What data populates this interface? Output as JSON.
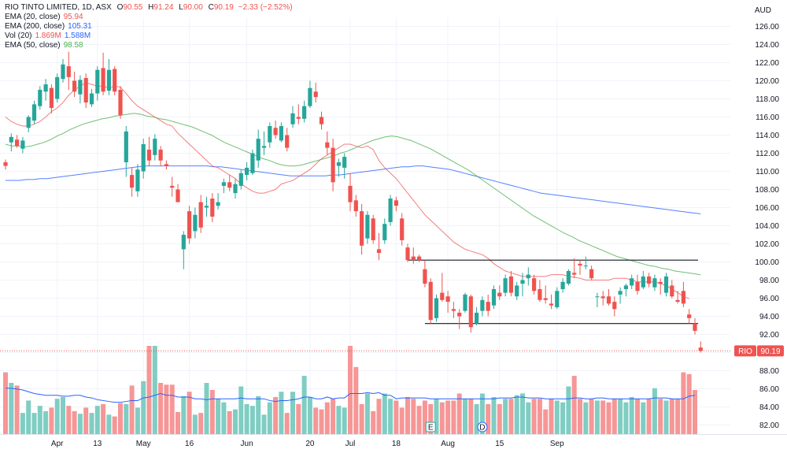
{
  "header": {
    "symbol": "RIO TINTO LIMITED, 1D, ASX",
    "ohlc": [
      {
        "k": "O",
        "v": "90.55"
      },
      {
        "k": "H",
        "v": "91.24"
      },
      {
        "k": "L",
        "v": "90.00"
      },
      {
        "k": "C",
        "v": "90.19"
      }
    ],
    "change": "−2.33 (−2.52%)",
    "currency": "AUD"
  },
  "indicators": [
    {
      "label": "EMA (20, close)",
      "value": "95.94",
      "color": "#ef5350"
    },
    {
      "label": "EMA (200, close)",
      "value": "105.31",
      "color": "#2962ff"
    },
    {
      "label": "Vol (20)",
      "value": "1.869M",
      "value2": "1.588M",
      "color": "#ef5350",
      "color2": "#2962ff"
    },
    {
      "label": "EMA (50, close)",
      "value": "98.58",
      "color": "#4caf50"
    }
  ],
  "price_tag": {
    "label": "RIO",
    "value": "90.19"
  },
  "chart_data": {
    "type": "candlestick",
    "ylim": [
      81,
      127
    ],
    "y_ticks": [
      "82.00",
      "84.00",
      "86.00",
      "88.00",
      "90.00",
      "92.00",
      "94.00",
      "96.00",
      "98.00",
      "100.00",
      "102.00",
      "104.00",
      "106.00",
      "108.00",
      "110.00",
      "112.00",
      "114.00",
      "116.00",
      "118.00",
      "120.00",
      "122.00",
      "124.00",
      "126.00"
    ],
    "x_ticks": [
      "Apr",
      "13",
      "May",
      "16",
      "Jun",
      "20",
      "Jul",
      "18",
      "Aug",
      "15",
      "Sep"
    ],
    "x_tick_bars": [
      9,
      16,
      24,
      32,
      42,
      53,
      60,
      68,
      77,
      86,
      96
    ],
    "markers": [
      {
        "label": "E",
        "bar": 74
      },
      {
        "label": "D",
        "bar": 83
      }
    ],
    "colors": {
      "up": "#26a69a",
      "down": "#ef5350",
      "vol_up": "#7fcdc3",
      "vol_down": "#f69696"
    },
    "candles": [
      [
        111.0,
        111.3,
        110.2,
        110.6
      ],
      [
        113.2,
        114.2,
        112.2,
        113.8
      ],
      [
        113.5,
        114.0,
        112.6,
        112.8
      ],
      [
        112.5,
        113.8,
        112.0,
        113.4
      ],
      [
        114.8,
        116.2,
        114.3,
        116.0
      ],
      [
        115.6,
        117.8,
        115.2,
        117.4
      ],
      [
        117.2,
        119.4,
        116.8,
        119.0
      ],
      [
        118.8,
        120.2,
        117.8,
        119.6
      ],
      [
        119.2,
        119.6,
        116.4,
        117.0
      ],
      [
        118.0,
        120.8,
        117.6,
        120.4
      ],
      [
        120.2,
        122.4,
        119.8,
        121.8
      ],
      [
        121.6,
        123.2,
        119.0,
        120.4
      ],
      [
        120.0,
        121.0,
        118.2,
        118.8
      ],
      [
        118.5,
        120.6,
        117.5,
        120.1
      ],
      [
        120.3,
        120.8,
        117.0,
        117.6
      ],
      [
        117.4,
        119.1,
        117.1,
        118.6
      ],
      [
        118.6,
        121.6,
        117.8,
        121.2
      ],
      [
        121.4,
        123.1,
        118.4,
        118.8
      ],
      [
        118.9,
        122.4,
        118.4,
        121.2
      ],
      [
        121.3,
        121.6,
        118.4,
        118.8
      ],
      [
        119.0,
        119.4,
        115.8,
        116.2
      ],
      [
        111.0,
        115.0,
        109.4,
        114.4
      ],
      [
        109.6,
        110.4,
        107.2,
        108.2
      ],
      [
        107.8,
        110.8,
        107.2,
        110.2
      ],
      [
        110.0,
        113.6,
        109.2,
        113.0
      ],
      [
        112.4,
        113.8,
        110.6,
        111.2
      ],
      [
        111.8,
        114.1,
        111.2,
        113.6
      ],
      [
        112.4,
        112.8,
        110.6,
        111.2
      ],
      [
        110.8,
        111.2,
        110.2,
        110.6
      ],
      [
        108.4,
        109.4,
        107.2,
        108.2
      ],
      [
        108.0,
        108.6,
        106.6,
        106.6
      ],
      [
        101.4,
        103.4,
        99.2,
        103.0
      ],
      [
        105.6,
        106.2,
        102.0,
        102.6
      ],
      [
        103.4,
        106.0,
        102.6,
        105.2
      ],
      [
        106.6,
        107.4,
        103.2,
        103.8
      ],
      [
        106.0,
        107.2,
        105.0,
        106.2
      ],
      [
        107.0,
        107.6,
        104.4,
        105.0
      ],
      [
        106.2,
        107.6,
        105.8,
        106.6
      ],
      [
        108.4,
        109.2,
        107.6,
        108.8
      ],
      [
        108.8,
        109.6,
        107.8,
        108.2
      ],
      [
        107.6,
        109.2,
        107.0,
        108.6
      ],
      [
        108.4,
        110.2,
        108.0,
        109.8
      ],
      [
        109.6,
        111.0,
        109.0,
        110.4
      ],
      [
        109.8,
        112.4,
        109.6,
        112.0
      ],
      [
        111.2,
        114.6,
        110.4,
        113.6
      ],
      [
        112.6,
        114.4,
        111.8,
        112.8
      ],
      [
        113.2,
        115.4,
        112.6,
        115.0
      ],
      [
        114.8,
        115.6,
        113.6,
        114.0
      ],
      [
        113.4,
        115.4,
        113.2,
        115.0
      ],
      [
        114.0,
        114.8,
        112.2,
        112.6
      ],
      [
        115.2,
        117.2,
        114.8,
        116.4
      ],
      [
        116.0,
        117.4,
        115.2,
        115.8
      ],
      [
        115.8,
        117.8,
        115.4,
        117.2
      ],
      [
        117.2,
        120.0,
        117.0,
        119.2
      ],
      [
        118.8,
        119.8,
        117.6,
        118.2
      ],
      [
        116.0,
        116.6,
        114.6,
        115.2
      ],
      [
        113.2,
        114.4,
        111.8,
        112.6
      ],
      [
        112.6,
        113.6,
        107.8,
        108.8
      ],
      [
        110.6,
        111.4,
        109.4,
        111.0
      ],
      [
        110.4,
        112.0,
        109.2,
        111.6
      ],
      [
        108.4,
        109.8,
        105.6,
        106.6
      ],
      [
        106.8,
        107.4,
        105.0,
        105.6
      ],
      [
        105.6,
        106.4,
        100.8,
        101.8
      ],
      [
        102.6,
        105.6,
        102.0,
        105.2
      ],
      [
        104.8,
        105.2,
        102.0,
        102.4
      ],
      [
        101.4,
        103.2,
        100.2,
        101.0
      ],
      [
        102.4,
        104.8,
        102.0,
        104.2
      ],
      [
        104.4,
        107.4,
        104.0,
        107.0
      ],
      [
        106.8,
        107.2,
        105.6,
        106.2
      ],
      [
        104.8,
        105.4,
        101.8,
        102.4
      ],
      [
        101.6,
        102.0,
        100.0,
        100.2
      ],
      [
        100.6,
        101.6,
        99.8,
        100.2
      ],
      [
        100.6,
        100.8,
        100.0,
        100.2
      ],
      [
        99.2,
        100.2,
        97.2,
        97.6
      ],
      [
        97.8,
        98.2,
        93.2,
        93.6
      ],
      [
        93.8,
        96.4,
        93.4,
        96.0
      ],
      [
        96.6,
        98.8,
        95.6,
        95.8
      ],
      [
        96.2,
        96.8,
        94.4,
        95.6
      ],
      [
        94.8,
        95.6,
        93.8,
        94.6
      ],
      [
        94.4,
        94.8,
        92.6,
        94.0
      ],
      [
        94.6,
        96.6,
        94.4,
        96.4
      ],
      [
        96.2,
        96.4,
        92.2,
        92.8
      ],
      [
        93.2,
        95.0,
        93.0,
        94.4
      ],
      [
        94.6,
        96.2,
        94.0,
        95.8
      ],
      [
        95.6,
        96.4,
        94.0,
        94.6
      ],
      [
        95.2,
        97.4,
        94.8,
        97.0
      ],
      [
        96.6,
        97.4,
        95.8,
        96.2
      ],
      [
        96.6,
        98.6,
        96.2,
        98.2
      ],
      [
        98.4,
        99.0,
        96.2,
        96.6
      ],
      [
        96.2,
        97.8,
        95.8,
        97.4
      ],
      [
        97.6,
        98.8,
        96.2,
        98.0
      ],
      [
        98.2,
        99.4,
        97.4,
        98.6
      ],
      [
        98.2,
        98.6,
        96.4,
        96.8
      ],
      [
        97.0,
        98.0,
        95.6,
        95.8
      ],
      [
        96.0,
        97.4,
        95.4,
        95.8
      ],
      [
        95.4,
        96.4,
        94.8,
        95.2
      ],
      [
        95.0,
        97.2,
        94.8,
        96.8
      ],
      [
        97.0,
        98.2,
        96.6,
        97.8
      ],
      [
        97.6,
        99.2,
        97.4,
        99.0
      ],
      [
        98.8,
        100.4,
        98.2,
        98.6
      ],
      [
        99.8,
        100.2,
        98.6,
        99.6
      ],
      [
        99.6,
        100.6,
        99.2,
        99.6
      ],
      [
        99.2,
        99.6,
        98.0,
        98.2
      ],
      [
        96.2,
        96.6,
        95.0,
        96.2
      ],
      [
        96.2,
        96.8,
        95.2,
        96.0
      ],
      [
        96.2,
        97.0,
        95.2,
        95.4
      ],
      [
        95.6,
        96.2,
        94.0,
        94.8
      ],
      [
        96.4,
        97.2,
        95.4,
        96.8
      ],
      [
        97.0,
        97.6,
        96.2,
        97.4
      ],
      [
        97.4,
        98.6,
        97.0,
        98.2
      ],
      [
        97.8,
        98.6,
        96.4,
        96.8
      ],
      [
        97.2,
        99.0,
        97.0,
        98.4
      ],
      [
        98.4,
        98.8,
        97.2,
        97.6
      ],
      [
        97.2,
        98.6,
        96.8,
        98.2
      ],
      [
        97.8,
        98.2,
        96.4,
        97.6
      ],
      [
        96.6,
        98.8,
        96.2,
        98.4
      ],
      [
        97.4,
        98.0,
        96.0,
        96.2
      ],
      [
        95.8,
        96.8,
        95.4,
        95.6
      ],
      [
        96.8,
        97.8,
        95.0,
        95.4
      ],
      [
        94.2,
        94.8,
        93.2,
        93.8
      ],
      [
        93.2,
        93.8,
        92.0,
        92.4
      ],
      [
        90.55,
        91.24,
        90.0,
        90.19
      ]
    ],
    "volume_ylim": [
      0,
      100
    ],
    "volumes": [
      70,
      58,
      55,
      24,
      38,
      24,
      32,
      26,
      30,
      40,
      42,
      32,
      26,
      23,
      30,
      24,
      32,
      34,
      22,
      20,
      35,
      34,
      55,
      30,
      60,
      100,
      100,
      58,
      56,
      56,
      25,
      43,
      48,
      22,
      24,
      58,
      50,
      40,
      36,
      26,
      28,
      54,
      34,
      32,
      43,
      22,
      36,
      42,
      48,
      24,
      48,
      34,
      66,
      42,
      30,
      28,
      36,
      40,
      32,
      30,
      100,
      76,
      34,
      46,
      26,
      40,
      46,
      40,
      38,
      30,
      42,
      40,
      32,
      38,
      34,
      40,
      36,
      38,
      38,
      46,
      40,
      40,
      34,
      46,
      34,
      42,
      34,
      40,
      40,
      44,
      46,
      36,
      40,
      40,
      28,
      40,
      38,
      36,
      54,
      66,
      40,
      36,
      40,
      38,
      38,
      36,
      40,
      40,
      36,
      42,
      40,
      36,
      40,
      52,
      40,
      38,
      40,
      40,
      70,
      68,
      50
    ],
    "volume_ma": [
      52,
      52,
      51,
      50,
      48,
      46,
      45,
      44,
      44,
      44,
      43,
      43,
      44,
      44,
      42,
      41,
      39,
      38,
      37,
      36,
      36,
      37,
      38,
      38,
      41,
      42,
      44,
      46,
      44,
      44,
      42,
      42,
      42,
      40,
      40,
      39,
      40,
      40,
      40,
      40,
      40,
      41,
      40,
      40,
      40,
      40,
      38,
      37,
      38,
      38,
      39,
      40,
      42,
      42,
      40,
      40,
      42,
      40,
      41,
      41,
      46,
      46,
      46,
      47,
      46,
      47,
      44,
      44,
      40,
      41,
      41,
      41,
      41,
      41,
      40,
      40,
      40,
      40,
      40,
      40,
      40,
      40,
      40,
      40,
      40,
      40,
      41,
      41,
      41,
      42,
      42,
      41,
      41,
      41,
      40,
      40,
      40,
      40,
      40,
      41,
      41,
      40,
      40,
      41,
      41,
      40,
      40,
      40,
      40,
      40,
      40,
      40,
      40,
      41,
      41,
      41,
      40,
      40,
      40,
      43,
      44
    ],
    "ema20": [
      116.0,
      115.5,
      115.2,
      115.0,
      115.0,
      115.2,
      115.5,
      116.0,
      116.6,
      117.0,
      117.6,
      118.4,
      119.0,
      119.4,
      119.8,
      119.6,
      119.4,
      119.4,
      119.2,
      119.4,
      119.3,
      118.6,
      117.8,
      117.2,
      116.8,
      116.4,
      116.0,
      115.6,
      115.2,
      115.0,
      114.2,
      113.6,
      113.0,
      112.4,
      111.8,
      111.2,
      110.6,
      110.4,
      110.0,
      109.6,
      109.2,
      108.6,
      108.2,
      107.8,
      107.6,
      107.6,
      107.8,
      108.0,
      108.6,
      108.8,
      109.0,
      109.4,
      109.8,
      110.2,
      110.8,
      111.4,
      111.8,
      112.2,
      112.6,
      113.0,
      113.0,
      112.8,
      112.6,
      112.8,
      112.4,
      111.2,
      110.4,
      109.8,
      109.2,
      108.4,
      107.6,
      106.8,
      106.0,
      105.2,
      104.6,
      104.0,
      103.4,
      102.8,
      102.2,
      101.8,
      101.4,
      101.2,
      101.0,
      100.8,
      100.4,
      99.8,
      99.4,
      99.0,
      98.8,
      98.6,
      98.4,
      98.4,
      98.4,
      98.4,
      98.4,
      98.6,
      98.6,
      98.6,
      98.4,
      98.3,
      98.2,
      98.0,
      98.0,
      98.0,
      98.0,
      98.0,
      98.2,
      98.2,
      98.2,
      98.0,
      97.8,
      97.8,
      97.8,
      97.8,
      97.6,
      97.4,
      97.0,
      96.6,
      96.2,
      95.94
    ],
    "ema50": [
      113.0,
      112.8,
      112.8,
      112.7,
      112.8,
      113.0,
      113.2,
      113.5,
      113.9,
      114.2,
      114.6,
      114.9,
      115.2,
      115.4,
      115.6,
      115.8,
      115.9,
      116.1,
      116.2,
      116.3,
      116.4,
      116.3,
      116.1,
      116.0,
      115.8,
      115.7,
      115.5,
      115.3,
      115.1,
      114.9,
      114.6,
      114.3,
      114.0,
      113.6,
      113.2,
      112.9,
      112.6,
      112.3,
      112.0,
      111.7,
      111.4,
      111.2,
      110.9,
      110.7,
      110.6,
      110.6,
      110.7,
      110.9,
      111.1,
      111.3,
      111.5,
      111.7,
      112.0,
      112.2,
      112.5,
      112.8,
      113.1,
      113.4,
      113.6,
      113.8,
      113.9,
      113.8,
      113.6,
      113.4,
      113.1,
      112.8,
      112.5,
      112.1,
      111.7,
      111.3,
      110.9,
      110.5,
      110.1,
      109.6,
      109.1,
      108.6,
      108.1,
      107.6,
      107.1,
      106.6,
      106.1,
      105.6,
      105.1,
      104.7,
      104.3,
      103.9,
      103.5,
      103.1,
      102.8,
      102.4,
      102.1,
      101.8,
      101.5,
      101.2,
      100.9,
      100.6,
      100.4,
      100.2,
      100.0,
      99.8,
      99.6,
      99.5,
      99.3,
      99.2,
      99.0,
      98.9,
      98.8,
      98.7,
      98.58
    ],
    "ema200": [
      109.0,
      109.0,
      109.0,
      109.1,
      109.1,
      109.2,
      109.2,
      109.3,
      109.4,
      109.5,
      109.6,
      109.7,
      109.8,
      109.9,
      110.0,
      110.1,
      110.2,
      110.3,
      110.4,
      110.5,
      110.6,
      110.6,
      110.6,
      110.6,
      110.6,
      110.6,
      110.6,
      110.6,
      110.6,
      110.6,
      110.5,
      110.5,
      110.4,
      110.3,
      110.2,
      110.1,
      110.0,
      109.9,
      109.8,
      109.7,
      109.6,
      109.5,
      109.5,
      109.5,
      109.5,
      109.5,
      109.5,
      109.6,
      109.6,
      109.7,
      109.8,
      109.9,
      110.0,
      110.1,
      110.2,
      110.3,
      110.4,
      110.5,
      110.5,
      110.6,
      110.6,
      110.5,
      110.4,
      110.3,
      110.2,
      110.0,
      109.8,
      109.6,
      109.4,
      109.2,
      109.0,
      108.8,
      108.6,
      108.4,
      108.2,
      108.0,
      107.8,
      107.6,
      107.5,
      107.4,
      107.3,
      107.2,
      107.1,
      107.0,
      106.9,
      106.8,
      106.7,
      106.6,
      106.5,
      106.4,
      106.3,
      106.2,
      106.1,
      106.0,
      105.9,
      105.8,
      105.7,
      105.6,
      105.5,
      105.4,
      105.31
    ],
    "levels": [
      {
        "price": 100.2,
        "from_bar": 70,
        "to_bar": 120
      },
      {
        "price": 93.2,
        "from_bar": 73,
        "to_bar": 120
      }
    ]
  }
}
